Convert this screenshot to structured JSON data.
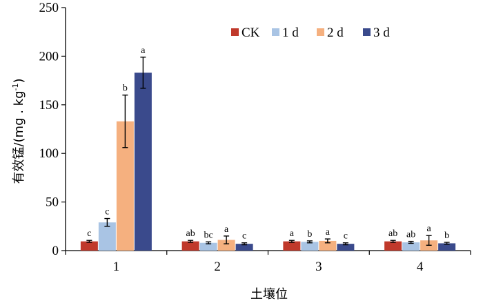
{
  "chart_data": {
    "type": "bar",
    "xlabel": "土壤位",
    "ylabel": "有效锰/(mg . kg-1)",
    "ylabel_parts": [
      "有效锰/(mg . kg",
      "-1",
      ")"
    ],
    "ylim": [
      0,
      250
    ],
    "yticks": [
      "0",
      "50",
      "100",
      "150",
      "200",
      "250"
    ],
    "ytick_values": [
      0,
      50,
      100,
      150,
      200,
      250
    ],
    "grid": false,
    "legend_position": "top-right",
    "categories": [
      "1",
      "2",
      "3",
      "4"
    ],
    "series": [
      {
        "name": "CK",
        "color": "#c0392b",
        "values": [
          9.5,
          9.5,
          9.5,
          9.5
        ],
        "errors": [
          1,
          1,
          1,
          1
        ],
        "labels": [
          "c",
          "ab",
          "a",
          "ab"
        ]
      },
      {
        "name": "1 d",
        "color": "#a9c4e4",
        "values": [
          29,
          8,
          9,
          8.5
        ],
        "errors": [
          4,
          1,
          1,
          1
        ],
        "labels": [
          "c",
          "bc",
          "b",
          "ab"
        ]
      },
      {
        "name": "2 d",
        "color": "#f5b07f",
        "values": [
          133,
          11,
          10,
          10.5
        ],
        "errors": [
          27,
          4,
          2,
          5
        ],
        "labels": [
          "b",
          "a",
          "a",
          "a"
        ]
      },
      {
        "name": "3 d",
        "color": "#3a4a8c",
        "values": [
          183,
          7,
          7,
          7.5
        ],
        "errors": [
          16,
          1,
          1,
          1
        ],
        "labels": [
          "a",
          "c",
          "c",
          "b"
        ]
      }
    ]
  }
}
